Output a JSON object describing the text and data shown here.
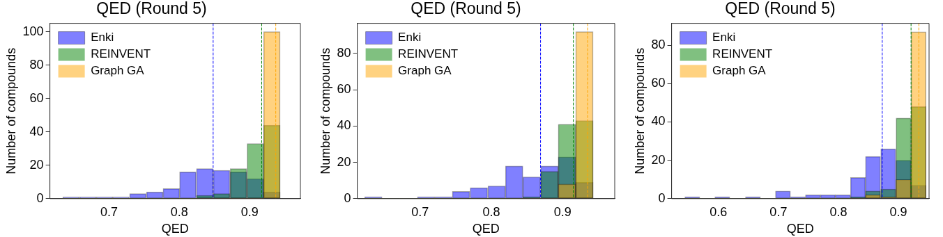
{
  "chart_data": [
    {
      "type": "histogram",
      "title": "QED (Round 5)",
      "xlabel": "QED",
      "ylabel": "Number of compounds",
      "bins": [
        0.634,
        0.658,
        0.682,
        0.705,
        0.729,
        0.753,
        0.777,
        0.8,
        0.824,
        0.848,
        0.872,
        0.896,
        0.92,
        0.943
      ],
      "series": [
        {
          "name": "Enki",
          "color": "#8080ff",
          "values": [
            1,
            1,
            1,
            1,
            3,
            4,
            6,
            16,
            18,
            17,
            16,
            12,
            4
          ]
        },
        {
          "name": "REINVENT",
          "color": "#80c080",
          "values": [
            0,
            0,
            0,
            0,
            0,
            0,
            0,
            0,
            2,
            3,
            18,
            33,
            44
          ]
        },
        {
          "name": "Graph GA",
          "color": "#ffd280",
          "values": [
            0,
            0,
            0,
            0,
            0,
            0,
            0,
            0,
            0,
            0,
            0,
            0,
            100
          ]
        }
      ],
      "xlim": [
        0.616,
        0.972
      ],
      "ylim": [
        0,
        105
      ],
      "xticks": [
        0.7,
        0.8,
        0.9
      ],
      "yticks": [
        0,
        20,
        40,
        60,
        80,
        100
      ],
      "ref_lines": [
        {
          "axis": "x",
          "value": 0.848,
          "color": "#0000ff",
          "line_style": "dashed"
        },
        {
          "axis": "x",
          "value": 0.917,
          "color": "#008000",
          "line_style": "dashed"
        },
        {
          "axis": "x",
          "value": 0.937,
          "color": "#ffa500",
          "line_style": "dashed"
        }
      ],
      "legend": "top left",
      "grid": false
    },
    {
      "type": "histogram",
      "title": "QED (Round 5)",
      "xlabel": "QED",
      "ylabel": "Number of compounds",
      "bins": [
        0.622,
        0.647,
        0.671,
        0.696,
        0.721,
        0.745,
        0.77,
        0.795,
        0.82,
        0.844,
        0.869,
        0.894,
        0.918,
        0.943
      ],
      "series": [
        {
          "name": "Enki",
          "color": "#8080ff",
          "values": [
            1,
            0,
            0,
            1,
            1,
            4,
            6,
            7,
            18,
            12,
            18,
            23,
            9
          ]
        },
        {
          "name": "REINVENT",
          "color": "#80c080",
          "values": [
            0,
            0,
            0,
            0,
            0,
            0,
            0,
            0,
            0,
            1,
            15,
            41,
            43
          ]
        },
        {
          "name": "Graph GA",
          "color": "#ffd280",
          "values": [
            0,
            0,
            0,
            0,
            0,
            0,
            0,
            0,
            0,
            0,
            0,
            8,
            92
          ]
        }
      ],
      "xlim": [
        0.612,
        0.973
      ],
      "ylim": [
        0,
        96.6
      ],
      "xticks": [
        0.7,
        0.8,
        0.9
      ],
      "yticks": [
        0,
        20,
        40,
        60,
        80
      ],
      "ref_lines": [
        {
          "axis": "x",
          "value": 0.869,
          "color": "#0000ff",
          "line_style": "dashed"
        },
        {
          "axis": "x",
          "value": 0.915,
          "color": "#008000",
          "line_style": "dashed"
        },
        {
          "axis": "x",
          "value": 0.935,
          "color": "#ffa500",
          "line_style": "dashed"
        }
      ],
      "legend": "top left",
      "grid": false
    },
    {
      "type": "histogram",
      "title": "QED (Round 5)",
      "xlabel": "QED",
      "ylabel": "Number of compounds",
      "bins": [
        0.544,
        0.569,
        0.594,
        0.619,
        0.645,
        0.67,
        0.695,
        0.72,
        0.745,
        0.77,
        0.795,
        0.82,
        0.845,
        0.87,
        0.896,
        0.921,
        0.946
      ],
      "series": [
        {
          "name": "Enki",
          "color": "#8080ff",
          "values": [
            1,
            0,
            1,
            0,
            1,
            0,
            4,
            1,
            2,
            2,
            2,
            11,
            22,
            26,
            20,
            7
          ]
        },
        {
          "name": "REINVENT",
          "color": "#80c080",
          "values": [
            0,
            0,
            0,
            0,
            0,
            0,
            0,
            0,
            0,
            0,
            0,
            1,
            4,
            5,
            42,
            48
          ]
        },
        {
          "name": "Graph GA",
          "color": "#ffd280",
          "values": [
            0,
            0,
            0,
            0,
            0,
            0,
            0,
            0,
            0,
            0,
            0,
            0,
            2,
            1,
            10,
            87
          ]
        }
      ],
      "xlim": [
        0.522,
        0.951
      ],
      "ylim": [
        0,
        91.4
      ],
      "xticks": [
        0.6,
        0.7,
        0.8,
        0.9
      ],
      "yticks": [
        0,
        20,
        40,
        60,
        80
      ],
      "ref_lines": [
        {
          "axis": "x",
          "value": 0.873,
          "color": "#0000ff",
          "line_style": "dashed"
        },
        {
          "axis": "x",
          "value": 0.921,
          "color": "#008000",
          "line_style": "dashed"
        },
        {
          "axis": "x",
          "value": 0.934,
          "color": "#ffa500",
          "line_style": "dashed"
        }
      ],
      "legend": "top left",
      "grid": false
    }
  ]
}
